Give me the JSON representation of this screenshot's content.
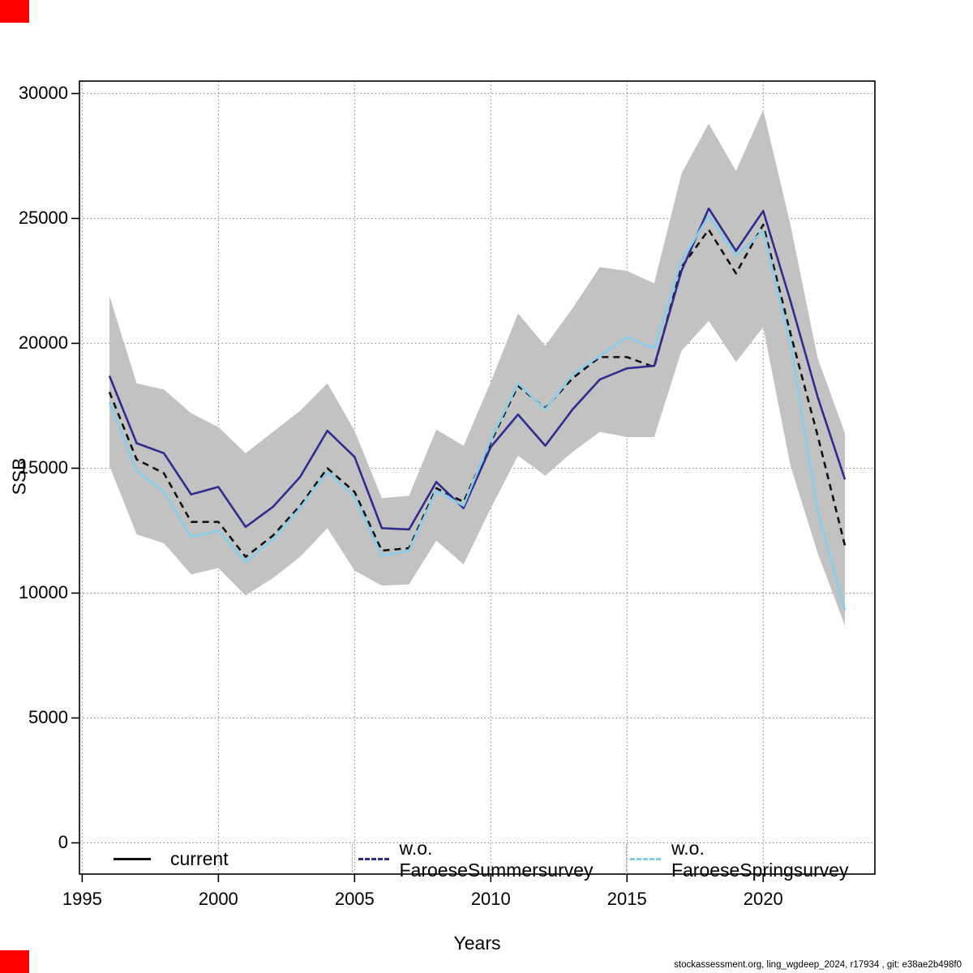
{
  "footer": {
    "text": "stockassessment.org, ling_wgdeep_2024, r17934 , git: e38ae2b498f0"
  },
  "colors": {
    "current_line": "#111111",
    "summer_line": "#2f2c8e",
    "spring_line": "#87ceeb",
    "confidence_band": "#c2c2c2",
    "gridline": "#808080",
    "corner_marker": "#ff0000"
  },
  "chart_data": {
    "type": "line",
    "title": "",
    "xlabel": "Years",
    "ylabel": "SSB",
    "grid": "dotted",
    "legend_position": "bottom-row",
    "xlim": [
      1994.9,
      2024.1
    ],
    "ylim": [
      -1250,
      30500
    ],
    "x_ticks": [
      1995,
      2000,
      2005,
      2010,
      2015,
      2020
    ],
    "y_ticks": [
      0,
      5000,
      10000,
      15000,
      20000,
      25000,
      30000
    ],
    "x": [
      1996,
      1997,
      1998,
      1999,
      2000,
      2001,
      2002,
      2003,
      2004,
      2005,
      2006,
      2007,
      2008,
      2009,
      2010,
      2011,
      2012,
      2013,
      2014,
      2015,
      2016,
      2017,
      2018,
      2019,
      2020,
      2021,
      2022,
      2023
    ],
    "series": [
      {
        "name": "current",
        "color": "#111111",
        "style": "dashed",
        "values": [
          18050,
          15350,
          14800,
          12850,
          12850,
          11450,
          12300,
          13500,
          15000,
          14050,
          11700,
          11800,
          14200,
          13650,
          16050,
          18300,
          17400,
          18600,
          19450,
          19450,
          19050,
          23050,
          24550,
          22800,
          24750,
          20400,
          16300,
          11900
        ]
      },
      {
        "name": "w.o. FaroeseSummersurvey",
        "color": "#2f2c8e",
        "style": "solid",
        "values": [
          18700,
          16000,
          15600,
          13950,
          14250,
          12650,
          13450,
          14650,
          16500,
          15450,
          12600,
          12550,
          14450,
          13400,
          15850,
          17150,
          15900,
          17350,
          18550,
          19000,
          19100,
          22900,
          25400,
          23700,
          25300,
          21700,
          17850,
          14550
        ]
      },
      {
        "name": "w.o. FaroeseSpringsurvey",
        "color": "#87ceeb",
        "style": "solid",
        "values": [
          17650,
          14900,
          14050,
          12250,
          12500,
          11250,
          12150,
          13400,
          14850,
          13850,
          11500,
          11700,
          14100,
          13500,
          16150,
          18400,
          17350,
          18750,
          19500,
          20250,
          19800,
          23300,
          25100,
          23500,
          24500,
          20000,
          13300,
          9300
        ]
      }
    ],
    "band": {
      "belongs_to": "current",
      "color": "#c2c2c2",
      "upper": [
        21900,
        18400,
        18150,
        17200,
        16650,
        15600,
        16450,
        17300,
        18400,
        16500,
        13800,
        13900,
        16550,
        15900,
        18450,
        21200,
        19900,
        21400,
        23050,
        22900,
        22400,
        26800,
        28800,
        26900,
        29350,
        24750,
        19400,
        16400
      ],
      "lower": [
        15100,
        12350,
        12000,
        10750,
        11000,
        9900,
        10600,
        11450,
        12600,
        10900,
        10300,
        10350,
        12100,
        11150,
        13400,
        15500,
        14700,
        15650,
        16450,
        16250,
        16250,
        19700,
        20900,
        19250,
        20650,
        15100,
        11600,
        8700
      ]
    }
  }
}
